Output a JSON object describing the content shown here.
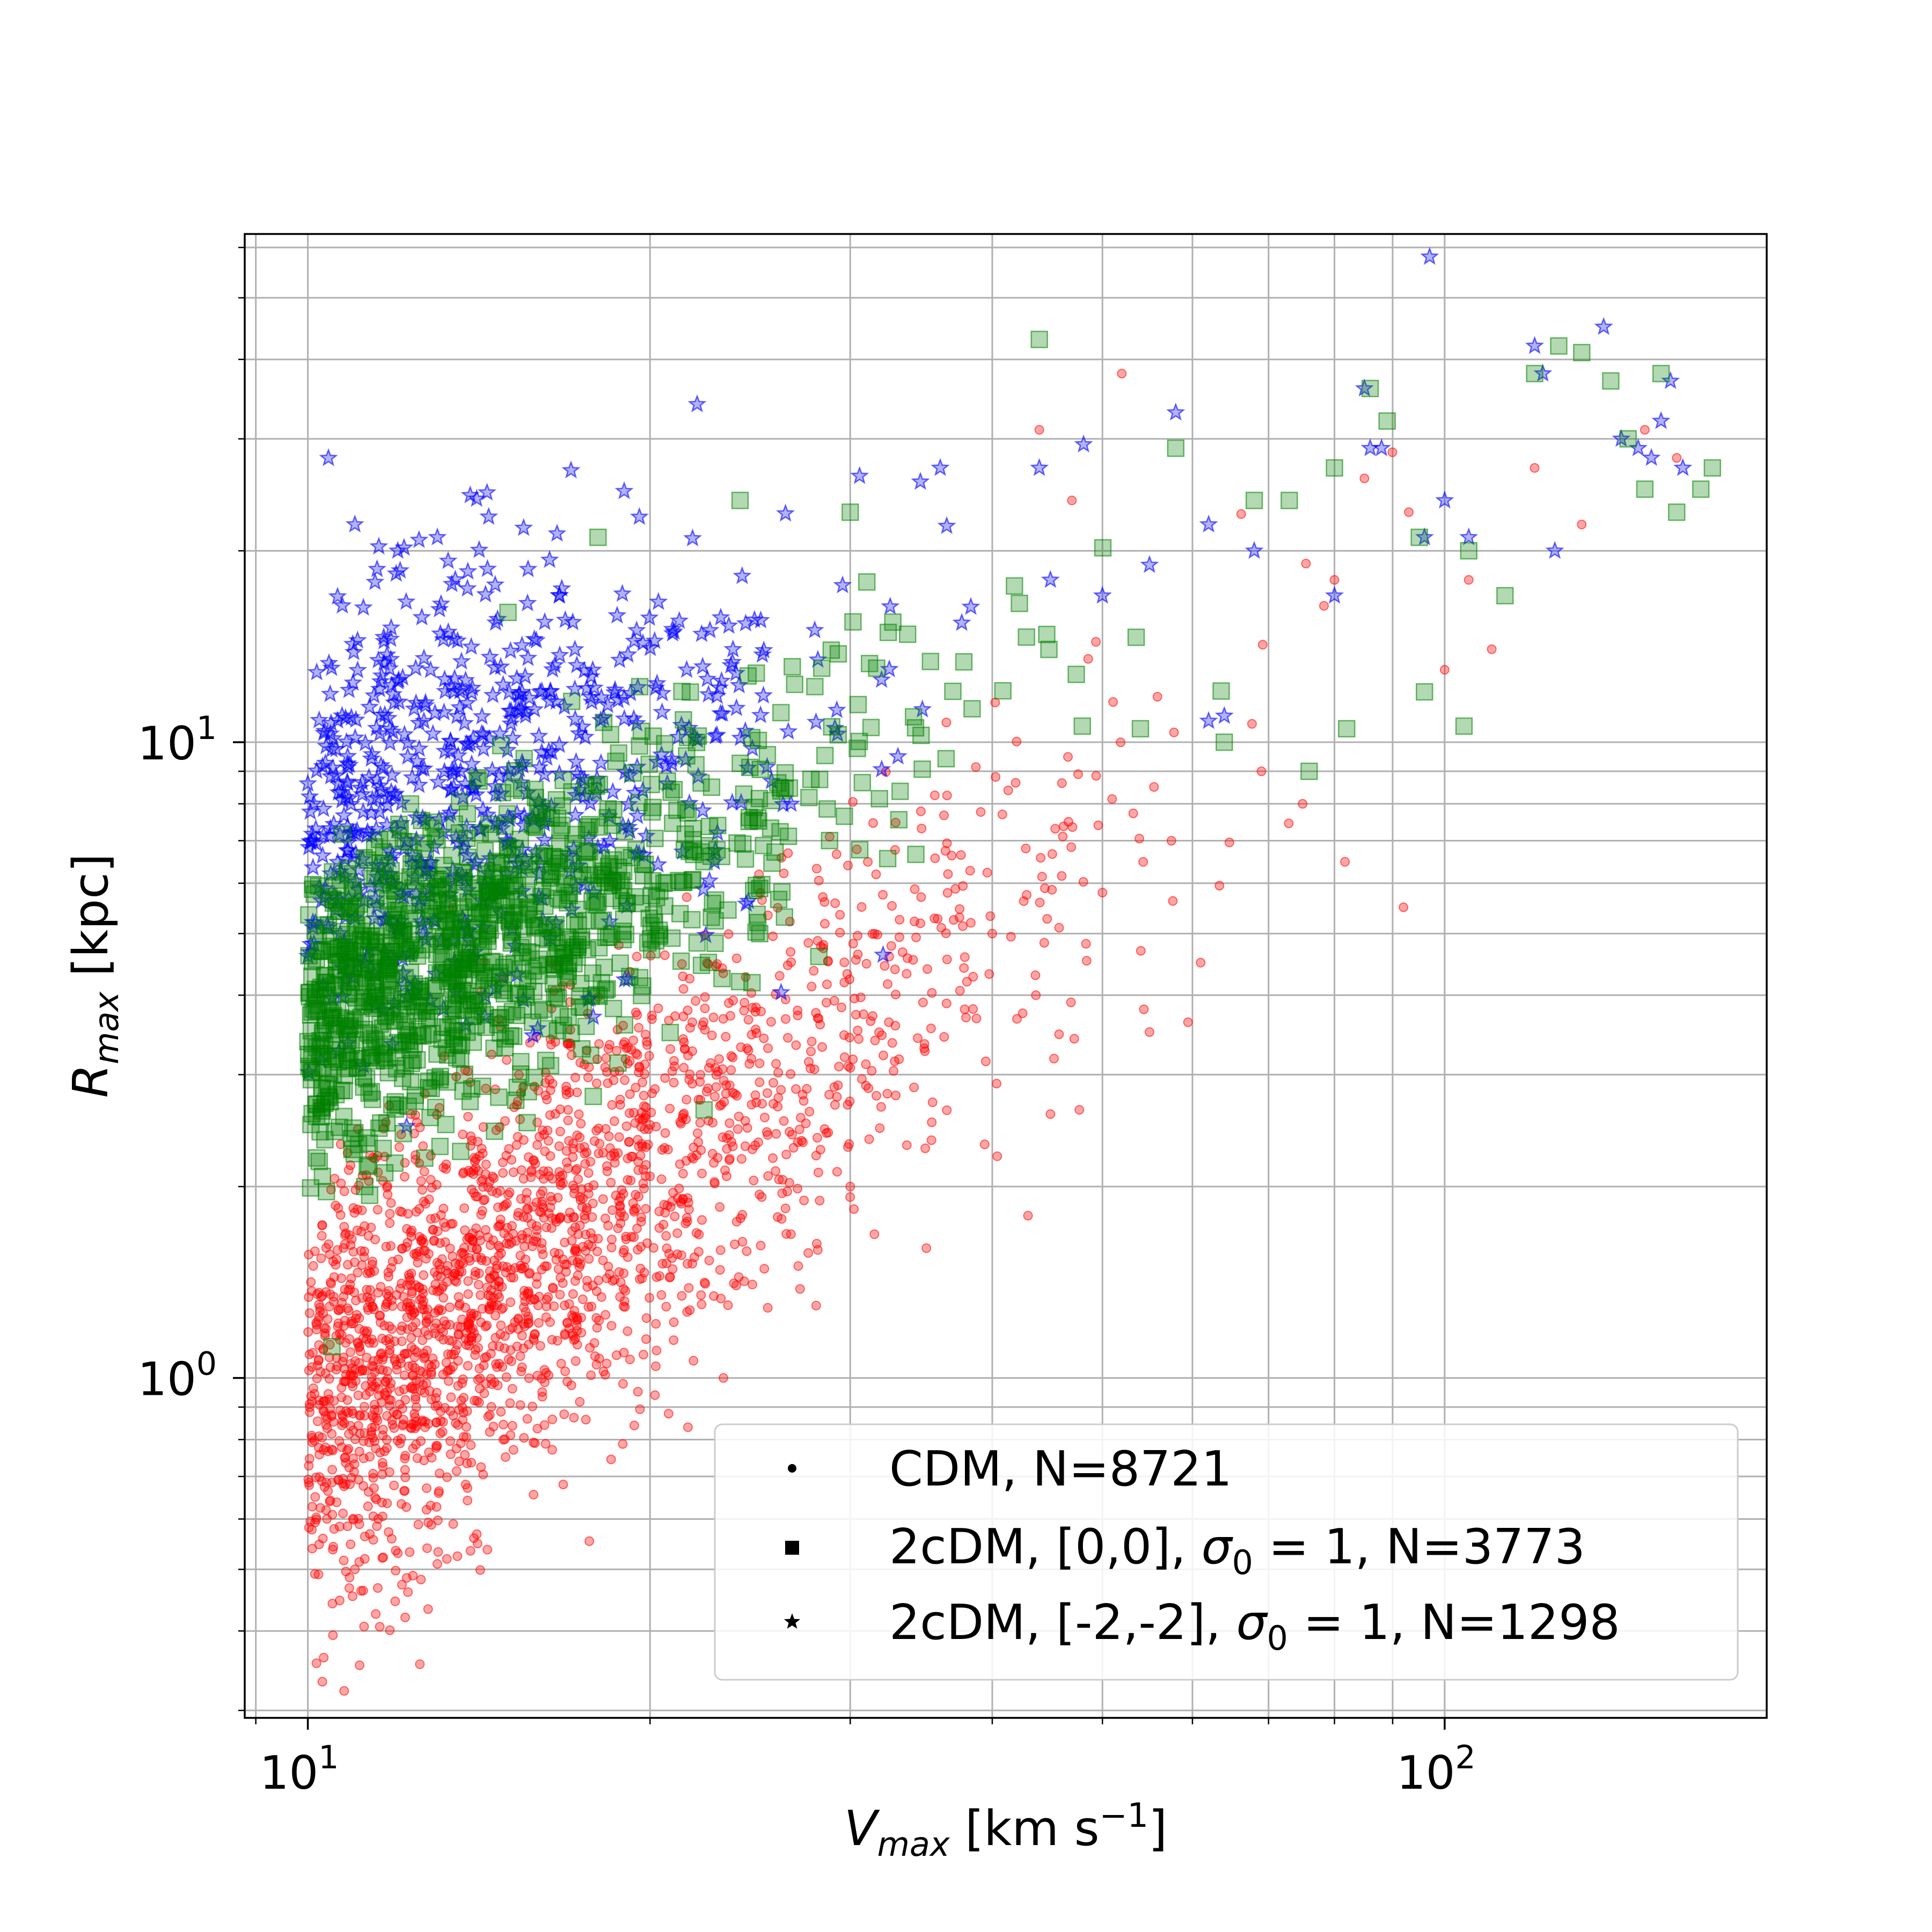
{
  "chart_data": {
    "type": "scatter",
    "x_scale": "log",
    "y_scale": "log",
    "xlabel": {
      "symbol": "V",
      "subscript": "max",
      "unit": " [km s",
      "unit_sup": "−1",
      "unit_end": "]"
    },
    "ylabel": {
      "symbol": "R",
      "subscript": "max",
      "unit": " [kpc]"
    },
    "xlim": [
      8.8,
      192
    ],
    "ylim": [
      0.292,
      63
    ],
    "x_ticks": [
      {
        "base": "10",
        "exp": "1",
        "value": 10
      },
      {
        "base": "10",
        "exp": "2",
        "value": 100
      }
    ],
    "y_ticks": [
      {
        "base": "10",
        "exp": "0",
        "value": 1
      },
      {
        "base": "10",
        "exp": "1",
        "value": 10
      }
    ],
    "grid": true,
    "legend_position": "bottom-right",
    "series": [
      {
        "name": "CDM, N=8721",
        "marker": "circle",
        "color": "#ff0000",
        "count_rendered": 2200,
        "distribution": {
          "x_range": [
            10,
            170
          ],
          "log_x_scale": 0.28,
          "relation": "log10(R) = -0.06 + 1.30*log10(V/10)",
          "log_r_scatter": 0.17
        },
        "outliers": [
          [
            52,
            38
          ],
          [
            47,
            24
          ],
          [
            44,
            31
          ],
          [
            85,
            26
          ],
          [
            93,
            23
          ],
          [
            105,
            18
          ],
          [
            110,
            14
          ],
          [
            120,
            27
          ],
          [
            132,
            22
          ],
          [
            150,
            31
          ],
          [
            160,
            28
          ],
          [
            80,
            18
          ],
          [
            75,
            8
          ],
          [
            69,
            9
          ],
          [
            61,
            4.5
          ],
          [
            55,
            3.5
          ],
          [
            40,
            5
          ],
          [
            38,
            4.2
          ],
          [
            45,
            2.6
          ],
          [
            43,
            1.8
          ],
          [
            35,
            1.6
          ],
          [
            30,
            2
          ],
          [
            27,
            1.5
          ],
          [
            20,
            2.5
          ],
          [
            12,
            0.53
          ],
          [
            11,
            0.5
          ],
          [
            14,
            0.56
          ],
          [
            13,
            0.51
          ],
          [
            28,
            1.3
          ],
          [
            50,
            5.8
          ],
          [
            92,
            5.5
          ],
          [
            100,
            13
          ]
        ]
      },
      {
        "name": "2cDM, [0,0], σ₀ = 1, N=3773",
        "name_parts": {
          "pre": "2cDM, [0,0], ",
          "sym": "σ",
          "sub": "0",
          "post": " = 1, N=3773"
        },
        "marker": "square",
        "color": "#008000",
        "count_rendered": 1100,
        "distribution": {
          "x_range": [
            10,
            170
          ],
          "log_x_scale": 0.22,
          "relation": "log10(R) = 0.55 + 0.85*log10(V/10)",
          "log_r_scatter": 0.12
        },
        "outliers": [
          [
            44,
            43
          ],
          [
            86,
            36
          ],
          [
            89,
            32
          ],
          [
            58,
            29
          ],
          [
            68,
            24
          ],
          [
            73,
            24
          ],
          [
            80,
            27
          ],
          [
            95,
            21
          ],
          [
            105,
            20
          ],
          [
            113,
            17
          ],
          [
            120,
            38
          ],
          [
            126,
            42
          ],
          [
            132,
            41
          ],
          [
            140,
            37
          ],
          [
            145,
            30
          ],
          [
            150,
            25
          ],
          [
            160,
            23
          ],
          [
            155,
            38
          ],
          [
            168,
            25
          ],
          [
            172,
            27
          ],
          [
            30,
            23
          ],
          [
            24,
            24
          ],
          [
            18,
            21
          ],
          [
            15,
            16
          ],
          [
            96,
            12
          ],
          [
            104,
            10.6
          ],
          [
            82,
            10.5
          ],
          [
            76,
            9
          ],
          [
            64,
            10
          ],
          [
            54,
            10.5
          ],
          [
            48,
            10.6
          ],
          [
            10.5,
            1.12
          ]
        ]
      },
      {
        "name": "2cDM, [-2,-2], σ₀ = 1, N=1298",
        "name_parts": {
          "pre": "2cDM, [-2,-2], ",
          "sym": "σ",
          "sub": "0",
          "post": " = 1, N=1298"
        },
        "marker": "star",
        "color": "#0000ff",
        "count_rendered": 700,
        "distribution": {
          "x_range": [
            10,
            170
          ],
          "log_x_scale": 0.2,
          "relation": "log10(R) = 0.85 + 0.55*log10(V/10)",
          "log_r_scatter": 0.18
        },
        "outliers": [
          [
            97,
            58
          ],
          [
            138,
            45
          ],
          [
            120,
            42
          ],
          [
            122,
            38
          ],
          [
            158,
            37
          ],
          [
            155,
            32
          ],
          [
            143,
            30
          ],
          [
            148,
            29
          ],
          [
            152,
            28
          ],
          [
            162,
            27
          ],
          [
            85,
            36
          ],
          [
            88,
            29
          ],
          [
            86,
            29
          ],
          [
            58,
            33
          ],
          [
            44,
            27
          ],
          [
            36,
            27
          ],
          [
            22,
            34
          ],
          [
            11,
            22
          ],
          [
            12,
            20
          ],
          [
            13,
            21
          ],
          [
            100,
            24
          ],
          [
            105,
            21
          ],
          [
            125,
            20
          ],
          [
            96,
            21
          ],
          [
            68,
            20
          ],
          [
            62,
            22
          ],
          [
            55,
            19
          ],
          [
            50,
            17
          ],
          [
            45,
            18
          ],
          [
            80,
            17
          ],
          [
            64,
            11
          ],
          [
            62,
            10.8
          ]
        ]
      }
    ]
  }
}
